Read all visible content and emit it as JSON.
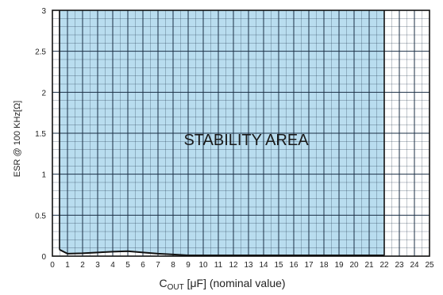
{
  "chart_data": {
    "type": "area",
    "title": "",
    "xlabel_parts": [
      "C",
      "OUT",
      " [μF] (nominal value)"
    ],
    "ylabel": "ESR @ 100 KHz[Ω]",
    "xlim": [
      0,
      25
    ],
    "ylim": [
      0,
      3
    ],
    "x_ticks": [
      0,
      1,
      2,
      3,
      4,
      5,
      6,
      7,
      8,
      9,
      10,
      11,
      12,
      13,
      14,
      15,
      16,
      17,
      18,
      19,
      20,
      21,
      22,
      23,
      24,
      25
    ],
    "y_ticks": [
      0,
      0.5,
      1,
      1.5,
      2,
      2.5,
      3
    ],
    "y_tick_labels": [
      "0",
      "0.5",
      "1",
      "1.5",
      "2",
      "2.5",
      "3"
    ],
    "x_minor_step": 0.5,
    "y_minor_step": 0.1,
    "grid": true,
    "fill_color": "#b9ddef",
    "grid_color": "#1b2f45",
    "annotation": "STABILITY AREA",
    "series": [
      {
        "x": [
          0.47,
          1,
          2,
          3,
          4,
          5,
          6,
          7,
          8,
          9,
          10,
          22
        ],
        "y_lower": [
          0.08,
          0.03,
          0.035,
          0.045,
          0.055,
          0.06,
          0.045,
          0.03,
          0.02,
          0.01,
          0.01,
          0.01
        ],
        "y_upper": 3
      }
    ]
  }
}
